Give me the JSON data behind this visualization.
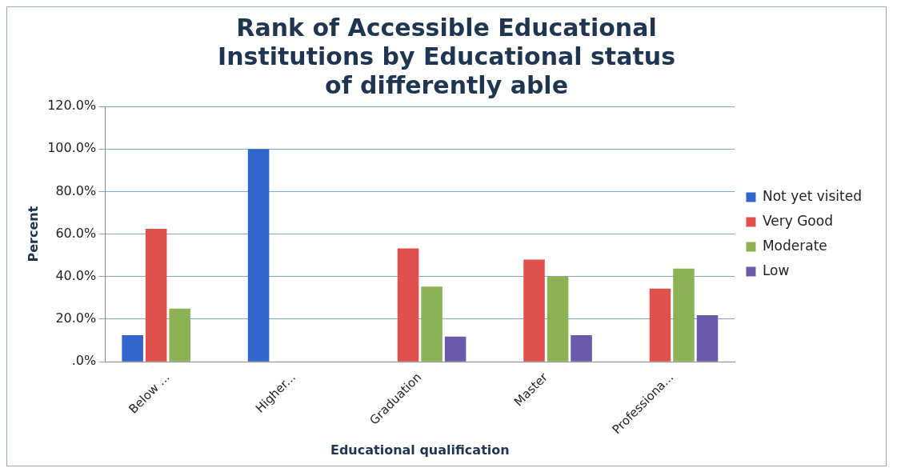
{
  "chart_data": {
    "type": "bar",
    "title": "Rank of Accessible Educational Institutions by Educational status of differently able",
    "xlabel": "Educational qualification",
    "ylabel": "Percent",
    "categories": [
      "Below ...",
      "Higher...",
      "Graduation",
      "Master",
      "Professiona..."
    ],
    "series": [
      {
        "name": "Not yet visited",
        "color": "#3366cc",
        "values": [
          12.5,
          100,
          null,
          null,
          null
        ]
      },
      {
        "name": "Very Good",
        "color": "#e0504d",
        "values": [
          62.5,
          null,
          53.3,
          48,
          34.4
        ]
      },
      {
        "name": "Moderate",
        "color": "#8db255",
        "values": [
          25,
          null,
          35.3,
          40,
          43.8
        ]
      },
      {
        "name": "Low",
        "color": "#6a5aaa",
        "values": [
          null,
          null,
          11.8,
          12.5,
          21.9
        ]
      }
    ],
    "ylim": [
      0,
      120
    ],
    "yticks": [
      {
        "value": 0,
        "label": ".0%"
      },
      {
        "value": 20,
        "label": "20.0%"
      },
      {
        "value": 40,
        "label": "40.0%"
      },
      {
        "value": 60,
        "label": "60.0%"
      },
      {
        "value": 80,
        "label": "80.0%"
      },
      {
        "value": 100,
        "label": "100.0%"
      },
      {
        "value": 120,
        "label": "120.0%"
      }
    ],
    "grid": "y",
    "legend": "right"
  }
}
